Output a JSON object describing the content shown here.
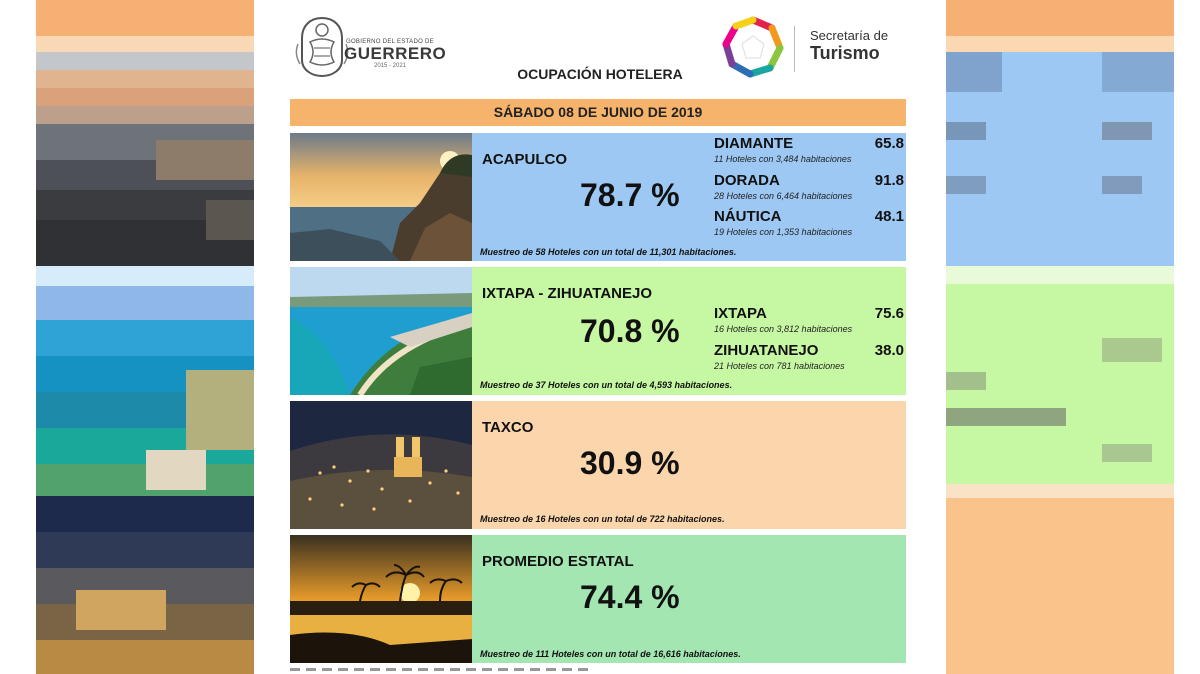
{
  "header": {
    "gov_small": "GOBIERNO DEL ESTADO DE",
    "gov_name": "GUERRERO",
    "gov_years": "2015 - 2021",
    "secretaria": "Secretaría de",
    "turismo": "Turismo",
    "title": "OCUPACIÓN HOTELERA",
    "date": "SÁBADO 08 DE JUNIO DE 2019"
  },
  "destinations": [
    {
      "name": "ACAPULCO",
      "percent": "78.7 %",
      "sample": "Muestreo de 58 Hoteles con un total de 11,301 habitaciones.",
      "color": "#9dc8f3",
      "zones": [
        {
          "name": "DIAMANTE",
          "value": "65.8",
          "info": "11 Hoteles con 3,484 habitaciones"
        },
        {
          "name": "DORADA",
          "value": "91.8",
          "info": "28 Hoteles con 6,464 habitaciones"
        },
        {
          "name": "NÁUTICA",
          "value": "48.1",
          "info": "19 Hoteles con 1,353 habitaciones"
        }
      ]
    },
    {
      "name": "IXTAPA - ZIHUATANEJO",
      "percent": "70.8 %",
      "sample": "Muestreo de 37 Hoteles con un total de 4,593 habitaciones.",
      "color": "#c6f7a2",
      "zones": [
        {
          "name": "IXTAPA",
          "value": "75.6",
          "info": "16 Hoteles con 3,812 habitaciones"
        },
        {
          "name": "ZIHUATANEJO",
          "value": "38.0",
          "info": "21 Hoteles con 781 habitaciones"
        }
      ]
    },
    {
      "name": "TAXCO",
      "percent": "30.9 %",
      "sample": "Muestreo de 16 Hoteles con un total de 722 habitaciones.",
      "color": "#fbd6ad",
      "zones": []
    },
    {
      "name": "PROMEDIO ESTATAL",
      "percent": "74.4 %",
      "sample": "Muestreo de 111 Hoteles con un total de 16,616 habitaciones.",
      "color": "#a3e6b2",
      "zones": []
    }
  ],
  "colors": {
    "date_bar": "#f6b36b",
    "side_orange": "#fbc38c",
    "side_blue": "#9dc8f3",
    "side_green": "#c6f7a2"
  }
}
